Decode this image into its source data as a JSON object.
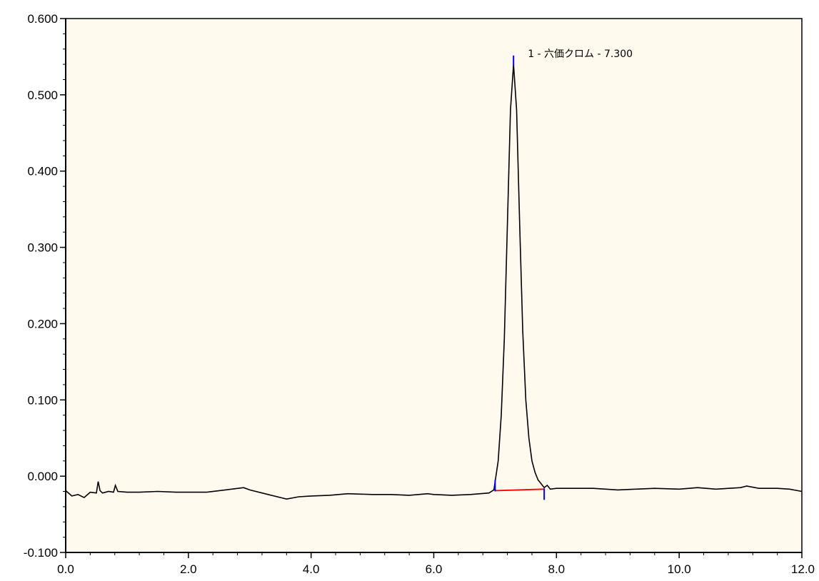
{
  "chart_data": {
    "type": "line",
    "title": "",
    "xlabel": "",
    "ylabel": "",
    "xlim": [
      0.0,
      12.0
    ],
    "ylim": [
      -0.1,
      0.6
    ],
    "grid": false,
    "x_ticks": [
      "0.0",
      "2.0",
      "4.0",
      "6.0",
      "8.0",
      "10.0",
      "12.0"
    ],
    "y_ticks": [
      "-0.100",
      "0.000",
      "0.100",
      "0.200",
      "0.300",
      "0.400",
      "0.500",
      "0.600"
    ],
    "series": [
      {
        "color": "#000000",
        "x": [
          0.0,
          0.1,
          0.2,
          0.3,
          0.4,
          0.5,
          0.53,
          0.56,
          0.6,
          0.7,
          0.78,
          0.81,
          0.85,
          1.0,
          1.2,
          1.5,
          1.8,
          2.0,
          2.3,
          2.6,
          2.9,
          3.0,
          3.3,
          3.6,
          3.8,
          4.0,
          4.3,
          4.6,
          5.0,
          5.3,
          5.6,
          5.9,
          6.0,
          6.3,
          6.6,
          6.9,
          6.98,
          7.05,
          7.1,
          7.15,
          7.2,
          7.25,
          7.3,
          7.35,
          7.4,
          7.45,
          7.5,
          7.55,
          7.6,
          7.65,
          7.7,
          7.75,
          7.8,
          7.85,
          7.9,
          8.0,
          8.3,
          8.6,
          9.0,
          9.3,
          9.6,
          10.0,
          10.3,
          10.6,
          11.0,
          11.1,
          11.3,
          11.6,
          11.8,
          12.0
        ],
        "y": [
          -0.019,
          -0.026,
          -0.024,
          -0.028,
          -0.021,
          -0.022,
          -0.007,
          -0.019,
          -0.022,
          -0.02,
          -0.021,
          -0.012,
          -0.02,
          -0.021,
          -0.021,
          -0.02,
          -0.021,
          -0.021,
          -0.021,
          -0.018,
          -0.015,
          -0.018,
          -0.024,
          -0.03,
          -0.027,
          -0.026,
          -0.025,
          -0.023,
          -0.024,
          -0.024,
          -0.025,
          -0.023,
          -0.024,
          -0.025,
          -0.024,
          -0.022,
          -0.018,
          0.02,
          0.08,
          0.18,
          0.33,
          0.48,
          0.54,
          0.48,
          0.33,
          0.19,
          0.1,
          0.05,
          0.02,
          0.005,
          -0.005,
          -0.01,
          -0.015,
          -0.012,
          -0.017,
          -0.016,
          -0.016,
          -0.016,
          -0.018,
          -0.017,
          -0.016,
          -0.017,
          -0.015,
          -0.017,
          -0.015,
          -0.013,
          -0.016,
          -0.016,
          -0.017,
          -0.02
        ]
      }
    ],
    "baseline": {
      "x": [
        7.0,
        7.8
      ],
      "y": [
        -0.019,
        -0.017
      ],
      "color": "#ff0000"
    },
    "markers": [
      {
        "x": 7.0,
        "y": -0.019,
        "color": "#0000ff"
      },
      {
        "x": 7.8,
        "y": -0.017,
        "color": "#0000ff"
      },
      {
        "x": 7.3,
        "y": 0.545,
        "color": "#0000ff"
      }
    ],
    "peak_annotation": {
      "x": 7.3,
      "y": 0.54,
      "text": "1 - 六価クロム - 7.300"
    },
    "colors": {
      "plot_background": "#fff9ee",
      "axis": "#000000",
      "trace": "#000000",
      "baseline": "#ff0000",
      "marker": "#0000ff"
    }
  }
}
